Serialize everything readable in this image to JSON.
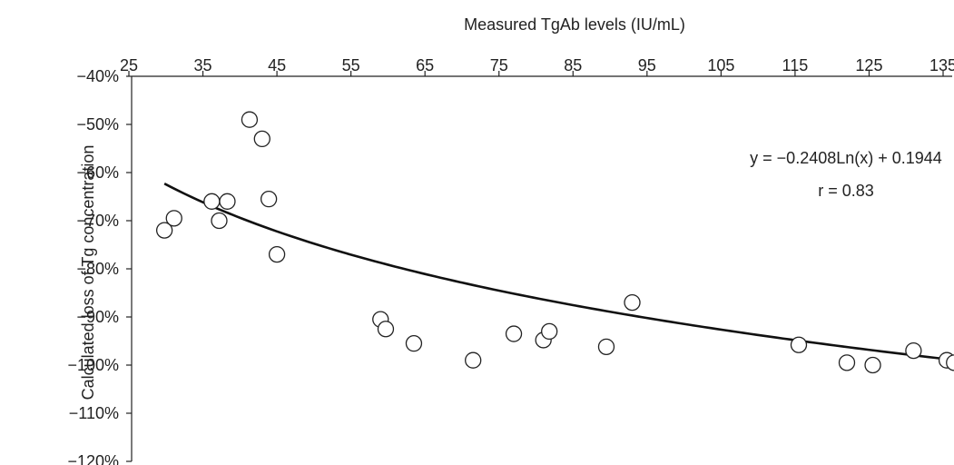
{
  "chart_data": {
    "type": "scatter",
    "xlabel": "Measured TgAb levels (IU/mL)",
    "ylabel": "Calculated loss of Tg concentration",
    "xlim": [
      25,
      137
    ],
    "ylim": [
      -120,
      -40
    ],
    "x_ticks": [
      25,
      35,
      45,
      55,
      65,
      75,
      85,
      95,
      105,
      115,
      125,
      135
    ],
    "y_ticks": [
      -40,
      -50,
      -60,
      -70,
      -80,
      -90,
      -100,
      -110,
      -120
    ],
    "x_axis_position": "top",
    "y_tick_suffix": "%",
    "grid": false,
    "legend": "none",
    "series": [
      {
        "marker": "open-circle",
        "x": [
          29.8,
          31.1,
          36.2,
          37.2,
          38.3,
          41.3,
          43.0,
          43.9,
          45.0,
          59.0,
          59.7,
          63.5,
          71.5,
          77.0,
          81.0,
          81.8,
          89.5,
          93.0,
          115.5,
          122.0,
          125.5,
          131.0,
          135.5,
          136.5
        ],
        "y": [
          -72,
          -69.5,
          -66,
          -70,
          -66,
          -49,
          -53,
          -65.5,
          -77,
          -90.5,
          -92.5,
          -95.5,
          -99,
          -93.5,
          -94.8,
          -93,
          -96.2,
          -87,
          -95.8,
          -99.5,
          -100,
          -97,
          -99,
          -99.5
        ]
      }
    ],
    "trendline": {
      "type": "logarithmic",
      "a": -0.2408,
      "b": 0.1944,
      "x_range": [
        29.8,
        136.5
      ]
    },
    "annotations": {
      "equation": "y = −0.2408Ln(x) + 0.1944",
      "r": "r = 0.83"
    },
    "colors": {
      "axis": "#222222",
      "trendline": "#111111",
      "marker_stroke": "#222222",
      "marker_fill": "#ffffff"
    }
  }
}
